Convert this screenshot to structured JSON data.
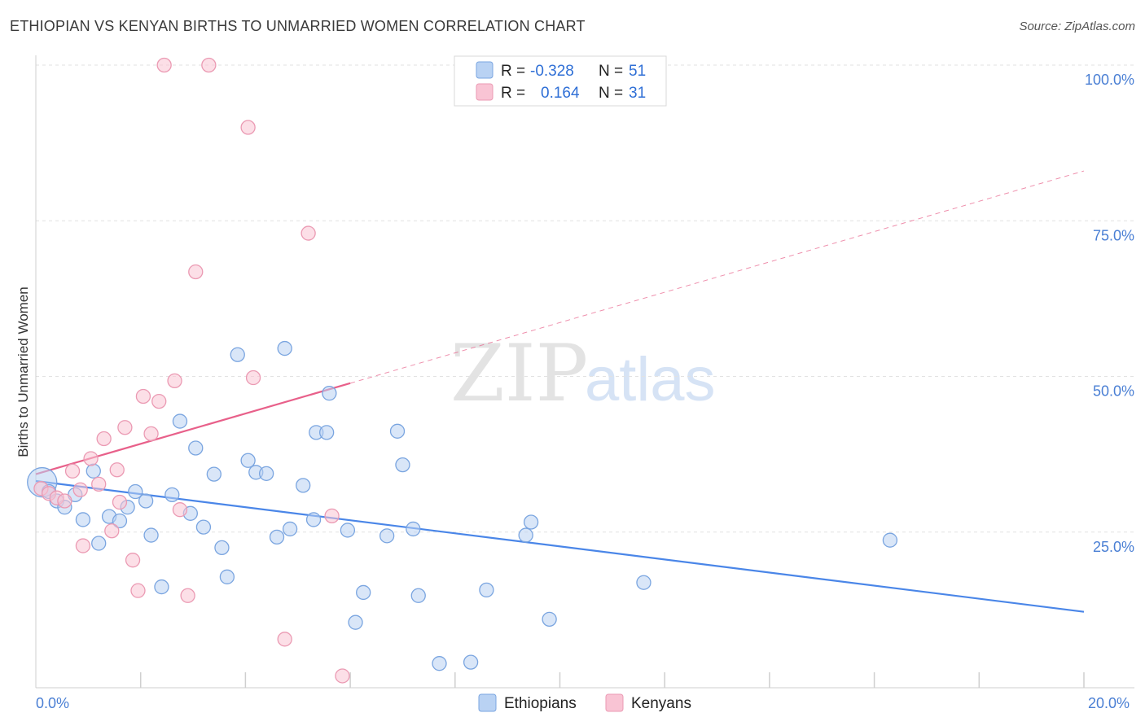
{
  "header": {
    "title": "ETHIOPIAN VS KENYAN BIRTHS TO UNMARRIED WOMEN CORRELATION CHART",
    "source": "Source: ZipAtlas.com"
  },
  "watermark": {
    "zip": "ZIP",
    "atlas": "atlas"
  },
  "legend": {
    "r_label": "R =",
    "n_label": "N =",
    "rows": [
      {
        "r": "-0.328",
        "n": "51",
        "color": "#b9d2f3",
        "stroke": "#7aa5e0"
      },
      {
        "r": "0.164",
        "n": "31",
        "color": "#f9c4d4",
        "stroke": "#eb9ab3"
      }
    ]
  },
  "bottom_legend": [
    {
      "label": "Ethiopians",
      "color": "#b9d2f3",
      "stroke": "#7aa5e0"
    },
    {
      "label": "Kenyans",
      "color": "#f9c4d4",
      "stroke": "#eb9ab3"
    }
  ],
  "chart_data": {
    "type": "scatter",
    "title": "ETHIOPIAN VS KENYAN BIRTHS TO UNMARRIED WOMEN CORRELATION CHART",
    "xlabel": "",
    "ylabel": "Births to Unmarried Women",
    "xlim": [
      0,
      20
    ],
    "ylim": [
      0,
      105
    ],
    "x_tick_labels": [
      "0.0%",
      "20.0%"
    ],
    "y_tick_labels": [
      "25.0%",
      "50.0%",
      "75.0%",
      "100.0%"
    ],
    "y_ticks": [
      25,
      50,
      75,
      100
    ],
    "grid": true,
    "series": [
      {
        "name": "Ethiopians",
        "color": "#4a86e8",
        "fill": "#b9d2f3",
        "stroke": "#7aa5e0",
        "r": -0.328,
        "n": 51,
        "trend": {
          "x0": 0,
          "y0": 33.2,
          "x1": 20,
          "y1": 12.2,
          "dashed_from": null
        },
        "points": [
          [
            0.12,
            33.0
          ],
          [
            0.25,
            31.5
          ],
          [
            0.4,
            30.0
          ],
          [
            0.55,
            29.0
          ],
          [
            0.75,
            31.0
          ],
          [
            0.9,
            27.0
          ],
          [
            1.1,
            34.8
          ],
          [
            1.2,
            23.2
          ],
          [
            1.4,
            27.5
          ],
          [
            1.6,
            26.8
          ],
          [
            1.9,
            31.5
          ],
          [
            1.75,
            29.0
          ],
          [
            2.1,
            30.0
          ],
          [
            2.2,
            24.5
          ],
          [
            2.4,
            16.2
          ],
          [
            2.6,
            31.0
          ],
          [
            2.75,
            42.8
          ],
          [
            2.95,
            28.0
          ],
          [
            3.05,
            38.5
          ],
          [
            3.2,
            25.8
          ],
          [
            3.4,
            34.3
          ],
          [
            3.55,
            22.5
          ],
          [
            3.65,
            17.8
          ],
          [
            3.85,
            53.5
          ],
          [
            4.05,
            36.5
          ],
          [
            4.2,
            34.6
          ],
          [
            4.4,
            34.4
          ],
          [
            4.6,
            24.2
          ],
          [
            4.75,
            54.5
          ],
          [
            4.85,
            25.5
          ],
          [
            5.1,
            32.5
          ],
          [
            5.3,
            27.0
          ],
          [
            5.35,
            41.0
          ],
          [
            5.55,
            41.0
          ],
          [
            5.6,
            47.3
          ],
          [
            5.95,
            25.3
          ],
          [
            6.1,
            10.5
          ],
          [
            6.25,
            15.3
          ],
          [
            6.7,
            24.4
          ],
          [
            6.9,
            41.2
          ],
          [
            7.0,
            35.8
          ],
          [
            7.2,
            25.5
          ],
          [
            7.3,
            14.8
          ],
          [
            7.7,
            3.9
          ],
          [
            8.3,
            4.1
          ],
          [
            8.6,
            15.7
          ],
          [
            9.35,
            24.5
          ],
          [
            9.45,
            26.6
          ],
          [
            9.8,
            11.0
          ],
          [
            11.6,
            16.9
          ],
          [
            16.3,
            23.7
          ]
        ]
      },
      {
        "name": "Kenyans",
        "color": "#e8608a",
        "fill": "#f9c4d4",
        "stroke": "#eb9ab3",
        "r": 0.164,
        "n": 31,
        "trend": {
          "x0": 0,
          "y0": 34.3,
          "x1": 20,
          "y1": 83.0,
          "dashed_from": 6.0
        },
        "points": [
          [
            0.1,
            32.0
          ],
          [
            0.25,
            31.2
          ],
          [
            0.4,
            30.5
          ],
          [
            0.55,
            30.0
          ],
          [
            0.7,
            34.8
          ],
          [
            0.85,
            31.8
          ],
          [
            0.9,
            22.8
          ],
          [
            1.05,
            36.8
          ],
          [
            1.2,
            32.7
          ],
          [
            1.3,
            40.0
          ],
          [
            1.45,
            25.2
          ],
          [
            1.6,
            29.8
          ],
          [
            1.7,
            41.8
          ],
          [
            1.85,
            20.5
          ],
          [
            1.95,
            15.6
          ],
          [
            2.05,
            46.8
          ],
          [
            2.2,
            40.8
          ],
          [
            2.35,
            46.0
          ],
          [
            2.45,
            100.0
          ],
          [
            2.65,
            49.3
          ],
          [
            2.75,
            28.6
          ],
          [
            2.9,
            14.8
          ],
          [
            3.05,
            66.8
          ],
          [
            3.3,
            100.0
          ],
          [
            4.05,
            90.0
          ],
          [
            4.15,
            49.8
          ],
          [
            4.75,
            7.8
          ],
          [
            5.2,
            73.0
          ],
          [
            5.65,
            27.6
          ],
          [
            5.85,
            1.9
          ],
          [
            1.55,
            35.0
          ]
        ]
      }
    ]
  }
}
